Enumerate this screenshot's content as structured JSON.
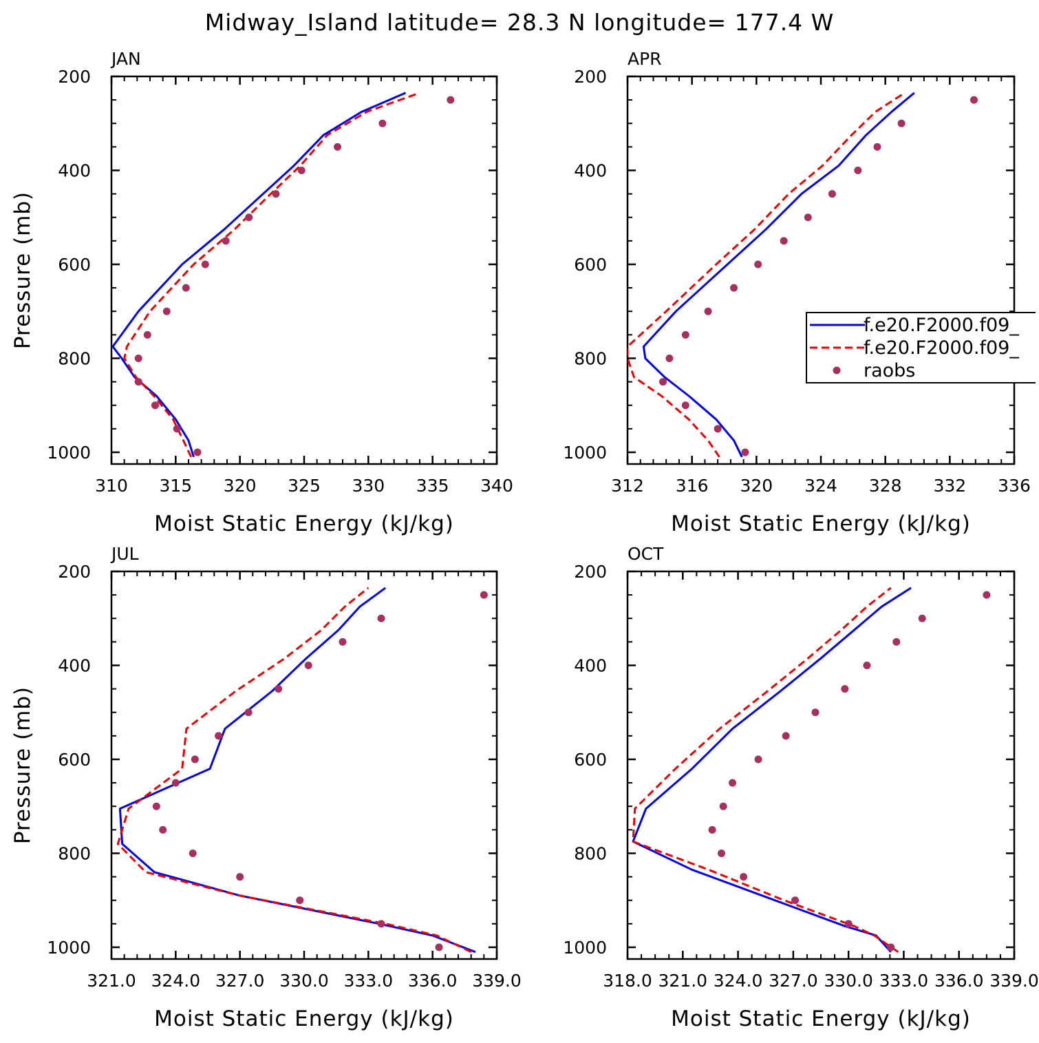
{
  "figure_title": "Midway_Island  latitude= 28.3 N longitude= 177.4 W",
  "colors": {
    "model_a": "#0000ee",
    "model_b": "#ee0000",
    "raobs": "#a8305e"
  },
  "legend": [
    {
      "label": "f.e20.F2000.f09_",
      "style": "solid-blue"
    },
    {
      "label": "f.e20.F2000.f09_",
      "style": "dashed-red"
    },
    {
      "label": "raobs",
      "style": "dot"
    }
  ],
  "chart_data": [
    {
      "type": "line",
      "panel": "JAN",
      "xlabel": "Moist Static Energy (kJ/kg)",
      "ylabel": "Pressure (mb)",
      "xlim": [
        310,
        340
      ],
      "ylim": [
        200,
        1025
      ],
      "y_inverted": true,
      "xticks": [
        "310",
        "315",
        "320",
        "325",
        "330",
        "335",
        "340"
      ],
      "yticks": [
        "200",
        "400",
        "600",
        "800",
        "1000"
      ],
      "series": [
        {
          "style": "solid-blue",
          "x": [
            316.4,
            316.0,
            315.0,
            313.5,
            311.8,
            310.8,
            310.1,
            312.1,
            315.5,
            318.8,
            321.8,
            324.2,
            326.5,
            329.5,
            332.9
          ],
          "y": [
            1010,
            975,
            930,
            880,
            840,
            800,
            775,
            700,
            600,
            525,
            450,
            390,
            325,
            275,
            235
          ]
        },
        {
          "style": "dashed-red",
          "x": [
            316.2,
            315.6,
            314.8,
            313.3,
            311.9,
            311.0,
            311.2,
            313.0,
            316.4,
            319.6,
            322.4,
            324.7,
            326.8,
            329.9,
            334.0
          ],
          "y": [
            1010,
            975,
            930,
            880,
            840,
            800,
            775,
            700,
            600,
            525,
            450,
            390,
            325,
            275,
            235
          ]
        },
        {
          "style": "dot",
          "x": [
            336.4,
            331.1,
            327.6,
            324.8,
            322.8,
            320.7,
            318.9,
            317.3,
            315.8,
            314.3,
            312.8,
            312.1,
            312.1,
            313.4,
            315.1,
            316.7
          ],
          "y": [
            250,
            300,
            350,
            400,
            450,
            500,
            550,
            600,
            650,
            700,
            750,
            800,
            850,
            900,
            950,
            1000
          ]
        }
      ]
    },
    {
      "type": "line",
      "panel": "APR",
      "xlabel": "Moist Static Energy (kJ/kg)",
      "ylabel": "",
      "xlim": [
        312,
        336
      ],
      "ylim": [
        200,
        1025
      ],
      "y_inverted": true,
      "xticks": [
        "312",
        "316",
        "320",
        "324",
        "328",
        "332",
        "336"
      ],
      "yticks": [
        "200",
        "400",
        "600",
        "800",
        "1000"
      ],
      "series": [
        {
          "style": "solid-blue",
          "x": [
            319.1,
            318.6,
            317.5,
            315.8,
            314.3,
            313.1,
            313.0,
            315.0,
            318.2,
            320.6,
            322.8,
            325.1,
            326.8,
            328.4,
            329.8
          ],
          "y": [
            1010,
            975,
            930,
            880,
            840,
            800,
            775,
            700,
            600,
            525,
            450,
            390,
            325,
            275,
            235
          ]
        },
        {
          "style": "dashed-red",
          "x": [
            317.7,
            317.0,
            315.8,
            314.1,
            312.4,
            312.0,
            312.0,
            314.4,
            317.5,
            319.9,
            322.0,
            324.1,
            325.9,
            327.4,
            329.2
          ],
          "y": [
            1010,
            975,
            930,
            880,
            840,
            800,
            775,
            700,
            600,
            525,
            450,
            390,
            325,
            275,
            235
          ]
        },
        {
          "style": "dot",
          "x": [
            333.5,
            329.0,
            327.5,
            326.3,
            324.7,
            323.2,
            321.7,
            320.1,
            318.6,
            317.0,
            315.6,
            314.6,
            314.2,
            315.6,
            317.6,
            319.3
          ],
          "y": [
            250,
            300,
            350,
            400,
            450,
            500,
            550,
            600,
            650,
            700,
            750,
            800,
            850,
            900,
            950,
            1000
          ]
        }
      ]
    },
    {
      "type": "line",
      "panel": "JUL",
      "xlabel": "Moist Static Energy (kJ/kg)",
      "ylabel": "Pressure (mb)",
      "xlim": [
        321,
        339
      ],
      "ylim": [
        200,
        1025
      ],
      "y_inverted": true,
      "xticks": [
        "321.0",
        "324.0",
        "327.0",
        "330.0",
        "333.0",
        "336.0",
        "339.0"
      ],
      "yticks": [
        "200",
        "400",
        "600",
        "800",
        "1000"
      ],
      "series": [
        {
          "style": "solid-blue",
          "x": [
            338.0,
            336.0,
            333.5,
            327.0,
            323.0,
            321.5,
            321.4,
            325.6,
            326.3,
            328.5,
            330.1,
            331.6,
            332.6,
            333.8
          ],
          "y": [
            1010,
            975,
            950,
            890,
            840,
            780,
            705,
            620,
            535,
            455,
            385,
            325,
            275,
            235
          ]
        },
        {
          "style": "dashed-red",
          "x": [
            337.8,
            336.2,
            333.8,
            327.0,
            322.6,
            321.3,
            321.8,
            324.3,
            324.5,
            326.8,
            329.1,
            330.8,
            331.9,
            333.0
          ],
          "y": [
            1010,
            975,
            950,
            890,
            840,
            780,
            705,
            620,
            535,
            455,
            385,
            325,
            275,
            235
          ]
        },
        {
          "style": "dot",
          "x": [
            338.4,
            333.6,
            331.8,
            330.2,
            328.8,
            327.4,
            326.0,
            324.9,
            324.0,
            323.1,
            323.4,
            324.8,
            327.0,
            329.8,
            333.6,
            336.3
          ],
          "y": [
            250,
            300,
            350,
            400,
            450,
            500,
            550,
            600,
            650,
            700,
            750,
            800,
            850,
            900,
            950,
            1000
          ]
        }
      ]
    },
    {
      "type": "line",
      "panel": "OCT",
      "xlabel": "Moist Static Energy (kJ/kg)",
      "ylabel": "",
      "xlim": [
        318,
        339
      ],
      "ylim": [
        200,
        1025
      ],
      "y_inverted": true,
      "xticks": [
        "318.0",
        "321.0",
        "324.0",
        "327.0",
        "330.0",
        "333.0",
        "336.0",
        "339.0"
      ],
      "yticks": [
        "200",
        "400",
        "600",
        "800",
        "1000"
      ],
      "series": [
        {
          "style": "solid-blue",
          "x": [
            332.3,
            331.5,
            329.8,
            326.0,
            321.5,
            318.3,
            319.0,
            321.5,
            323.7,
            326.3,
            328.5,
            330.3,
            331.8,
            333.4
          ],
          "y": [
            1010,
            975,
            955,
            900,
            835,
            775,
            705,
            620,
            535,
            455,
            385,
            325,
            275,
            235
          ]
        },
        {
          "style": "dashed-red",
          "x": [
            332.7,
            331.4,
            330.3,
            326.5,
            322.4,
            318.3,
            318.4,
            320.6,
            323.0,
            325.6,
            327.8,
            329.6,
            331.0,
            332.3
          ],
          "y": [
            1010,
            975,
            955,
            900,
            835,
            775,
            705,
            620,
            535,
            455,
            385,
            325,
            275,
            235
          ]
        },
        {
          "style": "dot",
          "x": [
            337.5,
            334.0,
            332.6,
            331.0,
            329.8,
            328.2,
            326.6,
            325.1,
            323.7,
            323.2,
            322.6,
            323.1,
            324.3,
            327.1,
            330.0,
            332.3
          ],
          "y": [
            250,
            300,
            350,
            400,
            450,
            500,
            550,
            600,
            650,
            700,
            750,
            800,
            850,
            900,
            950,
            1000
          ]
        }
      ]
    }
  ]
}
